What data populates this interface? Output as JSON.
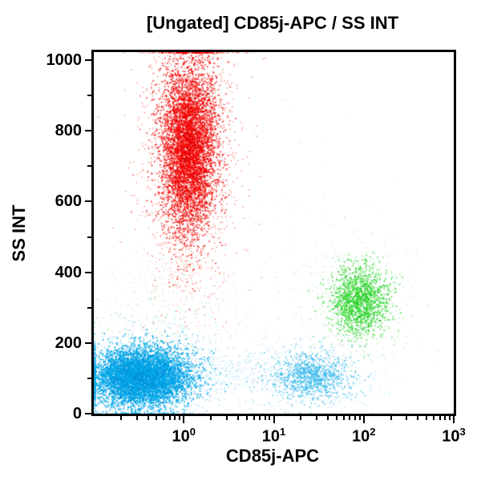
{
  "chart_data": {
    "type": "scatter",
    "subtype": "flow-cytometry-dot-plot",
    "title": "[Ungated] CD85j-APC / SS INT",
    "xlabel": "CD85j-APC",
    "ylabel": "SS INT",
    "x_scale": "log",
    "x_range": [
      0.1,
      1000
    ],
    "x_major_tick_base": 10,
    "x_major_tick_exponents": [
      0,
      1,
      2,
      3
    ],
    "y_scale": "linear",
    "y_range": [
      0,
      1023
    ],
    "y_major_ticks": [
      0,
      200,
      400,
      600,
      800,
      1000
    ],
    "y_minor_ticks": [
      100,
      300,
      500,
      700,
      900
    ],
    "grid": false,
    "legend": false,
    "background_color": "#ffffff",
    "axis_color": "#000000",
    "populations": [
      {
        "name": "debris-gray",
        "color": "#999999",
        "n": 260,
        "x_log10_mean": 0.7,
        "x_log10_sd": 1.05,
        "y_mean": 300,
        "y_sd": 230,
        "alpha": 0.4,
        "size": 1.2
      },
      {
        "name": "scatter-green-left",
        "color": "#7de07d",
        "n": 270,
        "x_log10_mean": -0.25,
        "x_log10_sd": 0.38,
        "y_mean": 270,
        "y_sd": 95,
        "alpha": 0.5,
        "size": 1.3
      },
      {
        "name": "monocyte-lymphocyte-bridge",
        "color": "#56c5ee",
        "n": 350,
        "x_log10_mean": 0.6,
        "x_log10_sd": 0.5,
        "y_mean": 115,
        "y_sd": 30,
        "alpha": 0.45,
        "size": 1.3
      },
      {
        "name": "granulocytes-tail",
        "color": "#fb5a4a",
        "n": 260,
        "x_log10_mean": 0.03,
        "x_log10_sd": 0.2,
        "y_mean": 450,
        "y_sd": 110,
        "alpha": 0.45,
        "size": 1.3
      },
      {
        "name": "granulocytes-halo",
        "color": "#fa2a1a",
        "n": 1500,
        "x_log10_mean": 0.05,
        "x_log10_sd": 0.27,
        "y_mean": 745,
        "y_sd": 185,
        "alpha": 0.5,
        "size": 1.5
      },
      {
        "name": "granulocytes",
        "color": "#f60400",
        "n": 4600,
        "x_log10_mean": 0.05,
        "x_log10_sd": 0.15,
        "y_mean": 755,
        "y_sd": 118,
        "alpha": 0.9,
        "size": 1.6
      },
      {
        "name": "granulocytes-dark",
        "color": "#c00000",
        "n": 450,
        "x_log10_mean": 0.05,
        "x_log10_sd": 0.14,
        "y_mean": 755,
        "y_sd": 115,
        "alpha": 0.85,
        "size": 1.4
      },
      {
        "name": "nk-cells-halo",
        "color": "#6ce06c",
        "n": 480,
        "x_log10_mean": 1.95,
        "x_log10_sd": 0.3,
        "y_mean": 320,
        "y_sd": 85,
        "alpha": 0.5,
        "size": 1.4
      },
      {
        "name": "nk-cells",
        "color": "#22d622",
        "n": 1150,
        "x_log10_mean": 1.95,
        "x_log10_sd": 0.16,
        "y_mean": 320,
        "y_sd": 50,
        "alpha": 0.85,
        "size": 1.6
      },
      {
        "name": "nk-cells-dark",
        "color": "#0fae0f",
        "n": 140,
        "x_log10_mean": 1.95,
        "x_log10_sd": 0.15,
        "y_mean": 320,
        "y_sd": 48,
        "alpha": 0.8,
        "size": 1.4
      },
      {
        "name": "monocytes-halo",
        "color": "#57c3ee",
        "n": 380,
        "x_log10_mean": 1.42,
        "x_log10_sd": 0.4,
        "y_mean": 118,
        "y_sd": 58,
        "alpha": 0.45,
        "size": 1.4
      },
      {
        "name": "monocytes",
        "color": "#19ade8",
        "n": 950,
        "x_log10_mean": 1.42,
        "x_log10_sd": 0.22,
        "y_mean": 108,
        "y_sd": 32,
        "alpha": 0.75,
        "size": 1.5
      },
      {
        "name": "lymphocytes-halo",
        "color": "#45bcee",
        "n": 1300,
        "x_log10_mean": -0.45,
        "x_log10_sd": 0.45,
        "y_mean": 115,
        "y_sd": 65,
        "alpha": 0.5,
        "size": 1.5
      },
      {
        "name": "lymphocytes",
        "color": "#00a7e9",
        "n": 5200,
        "x_log10_mean": -0.48,
        "x_log10_sd": 0.27,
        "y_mean": 105,
        "y_sd": 40,
        "alpha": 0.92,
        "size": 1.7
      },
      {
        "name": "lymphocytes-dark",
        "color": "#0080cf",
        "n": 500,
        "x_log10_mean": -0.48,
        "x_log10_sd": 0.25,
        "y_mean": 103,
        "y_sd": 37,
        "alpha": 0.85,
        "size": 1.4
      }
    ]
  }
}
